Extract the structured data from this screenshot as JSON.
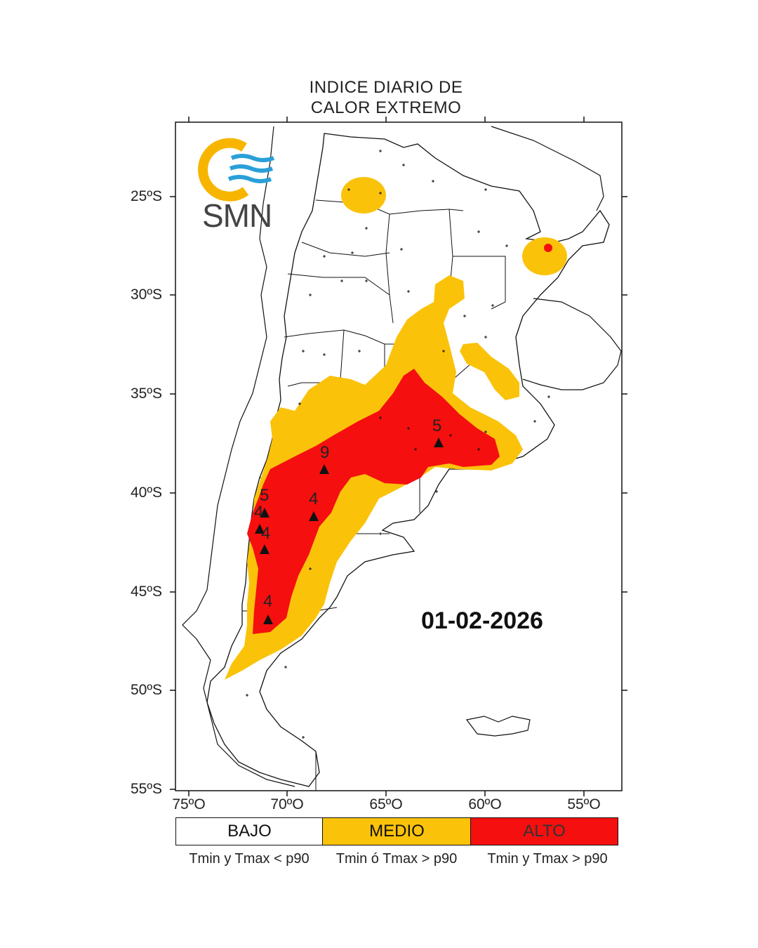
{
  "title": {
    "line1": "INDICE DIARIO DE",
    "line2": "CALOR EXTREMO"
  },
  "date": "01-02-2026",
  "logo": {
    "text": "SMN",
    "icon": "smn-logo-icon",
    "colors": {
      "sun": "#F7B500",
      "waves": "#2A9FD8"
    }
  },
  "axes": {
    "lat_labels": [
      "25ºS",
      "30ºS",
      "35ºS",
      "40ºS",
      "45ºS",
      "50ºS",
      "55ºS"
    ],
    "lon_labels": [
      "75ºO",
      "70ºO",
      "65ºO",
      "60ºO",
      "55ºO"
    ]
  },
  "legend": [
    {
      "label": "BAJO",
      "note": "Tmin y Tmax < p90",
      "color": "#FFFFFF"
    },
    {
      "label": "MEDIO",
      "note": "Tmin ó Tmax > p90",
      "color": "#FAC30A"
    },
    {
      "label": "ALTO",
      "note": "Tmin y Tmax > p90",
      "color": "#F50F0F"
    }
  ],
  "level_markers": [
    "5",
    "9",
    "5",
    "4",
    "4",
    "4",
    "4"
  ]
}
